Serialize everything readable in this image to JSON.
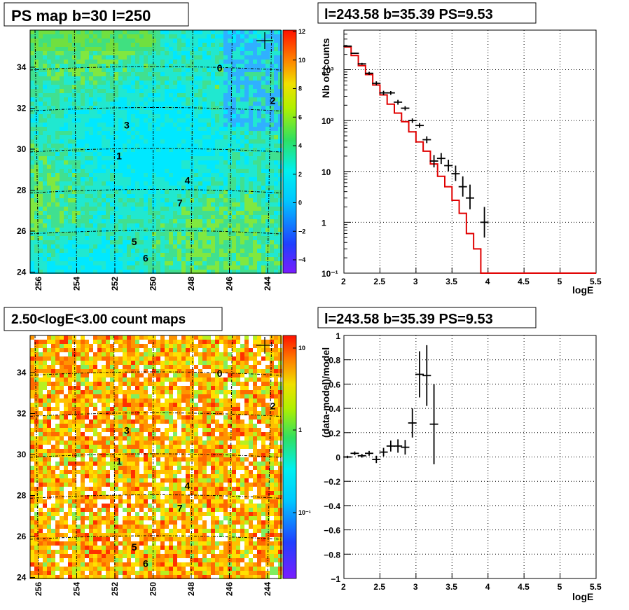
{
  "panels": {
    "ps_map_title": "PS map b=30 l=250",
    "count_map_title": "2.50<logE<3.00 count maps",
    "spectrum_title": "l=243.58 b=35.39 PS=9.53",
    "residual_title": "l=243.58 b=35.39 PS=9.53"
  },
  "map_axes": {
    "x_ticks": [
      "256",
      "254",
      "252",
      "250",
      "248",
      "246",
      "244"
    ],
    "y_ticks": [
      "34",
      "32",
      "30",
      "28",
      "26",
      "24"
    ]
  },
  "ps_colorbar_ticks": [
    "12",
    "10",
    "8",
    "6",
    "4",
    "2",
    "0",
    "−2",
    "−4"
  ],
  "count_colorbar_ticks": [
    "10",
    "1",
    "10⁻¹"
  ],
  "sources": [
    {
      "label": "0",
      "l": 246.6,
      "b": 33.8
    },
    {
      "label": "2",
      "l": 243.8,
      "b": 32.2
    },
    {
      "label": "3",
      "l": 251.5,
      "b": 31.0
    },
    {
      "label": "1",
      "l": 251.9,
      "b": 29.5
    },
    {
      "label": "4",
      "l": 248.3,
      "b": 28.3
    },
    {
      "label": "7",
      "l": 248.7,
      "b": 27.2
    },
    {
      "label": "5",
      "l": 251.1,
      "b": 25.3
    },
    {
      "label": "6",
      "l": 250.5,
      "b": 24.5
    }
  ],
  "colors": {
    "model_line": "#e00000",
    "data_points": "#000000",
    "grid": "#000000"
  },
  "chart_data": [
    {
      "type": "step",
      "title": "l=243.58 b=35.39 PS=9.53",
      "xlabel": "logE",
      "ylabel": "Nb of counts",
      "log_y": true,
      "xlim": [
        2,
        5.5
      ],
      "ylim": [
        0.1,
        6000
      ],
      "x_ticks": [
        "2",
        "2.5",
        "3",
        "3.5",
        "4",
        "4.5",
        "5",
        "5.5"
      ],
      "y_ticks": [
        "10⁻¹",
        "1",
        "10",
        "10²",
        "10³"
      ],
      "model_bin_width": 0.1,
      "model_x_start": 2.0,
      "model_values": [
        2800,
        1900,
        1200,
        800,
        500,
        320,
        210,
        140,
        95,
        60,
        38,
        25,
        14,
        8,
        5,
        2.7,
        1.5,
        0.6,
        0.3,
        0.1,
        0.1
      ],
      "data_x": [
        2.05,
        2.15,
        2.25,
        2.35,
        2.45,
        2.55,
        2.65,
        2.75,
        2.85,
        2.95,
        3.05,
        3.15,
        3.25,
        3.35,
        3.45,
        3.55,
        3.65,
        3.75,
        3.95
      ],
      "data_y": [
        2900,
        2100,
        1300,
        850,
        540,
        350,
        350,
        230,
        175,
        100,
        80,
        42,
        16,
        18,
        13,
        9,
        5,
        3,
        1
      ],
      "data_err_lo": [
        2850,
        2050,
        1240,
        790,
        490,
        315,
        320,
        205,
        158,
        90,
        72,
        36,
        12,
        14,
        10,
        6.5,
        3.2,
        1.8,
        0.5
      ],
      "data_err_hi": [
        2950,
        2150,
        1360,
        910,
        590,
        385,
        380,
        255,
        192,
        110,
        89,
        49,
        21,
        23,
        17,
        13,
        8,
        5.5,
        2
      ]
    },
    {
      "type": "scatter",
      "title": "l=243.58 b=35.39 PS=9.53",
      "xlabel": "logE",
      "ylabel": "(data-model)/model",
      "xlim": [
        2,
        5.5
      ],
      "ylim": [
        -1,
        1
      ],
      "x_ticks": [
        "2",
        "2.5",
        "3",
        "3.5",
        "4",
        "4.5",
        "5",
        "5.5"
      ],
      "y_ticks": [
        "1",
        "0.8",
        "0.6",
        "0.4",
        "0.2",
        "0",
        "−0.2",
        "−0.4",
        "−0.6",
        "−0.8",
        "−1"
      ],
      "x": [
        2.05,
        2.15,
        2.25,
        2.35,
        2.45,
        2.55,
        2.65,
        2.75,
        2.85,
        2.95,
        3.05,
        3.15,
        3.25
      ],
      "y": [
        0.0,
        0.03,
        0.01,
        0.03,
        -0.02,
        0.04,
        0.09,
        0.09,
        0.08,
        0.28,
        0.68,
        0.67,
        0.27
      ],
      "err": [
        0.01,
        0.015,
        0.015,
        0.02,
        0.03,
        0.035,
        0.045,
        0.055,
        0.06,
        0.12,
        0.19,
        0.25,
        0.33
      ]
    }
  ]
}
